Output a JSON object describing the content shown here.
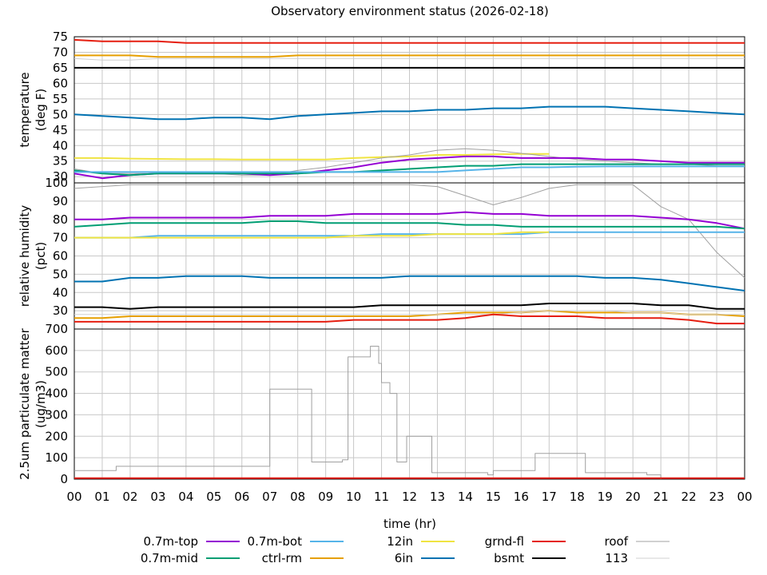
{
  "title": "Observatory environment status (2026-02-18)",
  "x_axis": {
    "label": "time (hr)",
    "ticks": [
      "00",
      "01",
      "02",
      "03",
      "04",
      "05",
      "06",
      "07",
      "08",
      "09",
      "10",
      "11",
      "12",
      "13",
      "14",
      "15",
      "16",
      "17",
      "18",
      "19",
      "20",
      "21",
      "22",
      "23",
      "00"
    ]
  },
  "legend": [
    {
      "name": "0.7m-top",
      "color": "#9400d3"
    },
    {
      "name": "0.7m-mid",
      "color": "#009e73"
    },
    {
      "name": "0.7m-bot",
      "color": "#56b4e9"
    },
    {
      "name": "ctrl-rm",
      "color": "#e69f00"
    },
    {
      "name": "12in",
      "color": "#f0e442"
    },
    {
      "name": "6in",
      "color": "#0072b2"
    },
    {
      "name": "grnd-fl",
      "color": "#e51e10"
    },
    {
      "name": "bsmt",
      "color": "#000000"
    },
    {
      "name": "roof",
      "color": "#a0a0a0"
    },
    {
      "name": "113",
      "color": "#d0d0d0"
    }
  ],
  "chart_data": [
    {
      "type": "line",
      "ylabel": "temperature\n(deg F)",
      "ylim": [
        28,
        75
      ],
      "yticks": [
        "30",
        "35",
        "40",
        "45",
        "50",
        "55",
        "60",
        "65",
        "70",
        "75"
      ],
      "x": [
        0,
        1,
        2,
        3,
        4,
        5,
        6,
        7,
        8,
        9,
        10,
        11,
        12,
        13,
        14,
        15,
        16,
        17,
        18,
        19,
        20,
        21,
        22,
        23,
        24
      ],
      "series": [
        {
          "name": "grnd-fl",
          "color": "#e51e10",
          "values": [
            74,
            73.5,
            73.5,
            73.5,
            73,
            73,
            73,
            73,
            73,
            73,
            73,
            73,
            73,
            73,
            73,
            73,
            73,
            73,
            73,
            73,
            73,
            73,
            73,
            73,
            73
          ]
        },
        {
          "name": "ctrl-rm",
          "color": "#e69f00",
          "values": [
            69,
            69,
            69,
            68.5,
            68.5,
            68.5,
            68.5,
            68.5,
            69,
            69,
            69,
            69,
            69,
            69,
            69,
            69,
            69,
            69,
            69,
            69,
            69,
            69,
            69,
            69,
            69
          ]
        },
        {
          "name": "113",
          "color": "#d0d0d0",
          "values": [
            68,
            67.5,
            67.5,
            68,
            68,
            68,
            68,
            68,
            68,
            68,
            68,
            68,
            68,
            68,
            68,
            68,
            68,
            68,
            68,
            68,
            68,
            68,
            68,
            68,
            68
          ]
        },
        {
          "name": "bsmt",
          "color": "#000000",
          "values": [
            65,
            65,
            65,
            65,
            65,
            65,
            65,
            65,
            65,
            65,
            65,
            65,
            65,
            65,
            65,
            65,
            65,
            65,
            65,
            65,
            65,
            65,
            65,
            65,
            65
          ]
        },
        {
          "name": "6in",
          "color": "#0072b2",
          "values": [
            50,
            49.5,
            49,
            48.5,
            48.5,
            49,
            49,
            48.5,
            49.5,
            50,
            50.5,
            51,
            51,
            51.5,
            51.5,
            52,
            52,
            52.5,
            52.5,
            52.5,
            52,
            51.5,
            51,
            50.5,
            50
          ]
        },
        {
          "name": "12in",
          "color": "#f0e442",
          "values": [
            36,
            36,
            35.8,
            35.7,
            35.6,
            35.6,
            35.5,
            35.5,
            35.5,
            35.5,
            36,
            36.3,
            36.5,
            37,
            37,
            37.2,
            37.3,
            37.3,
            null,
            null,
            null,
            null,
            null,
            null,
            null
          ]
        },
        {
          "name": "roof",
          "color": "#a0a0a0",
          "values": [
            32.5,
            31,
            31,
            31,
            31,
            31,
            30.5,
            30.5,
            32,
            33,
            34.5,
            36,
            37,
            38.5,
            39,
            38.5,
            37.5,
            36.5,
            35.5,
            35,
            34.5,
            34,
            34,
            33.5,
            33.5
          ]
        },
        {
          "name": "0.7m-top",
          "color": "#9400d3",
          "values": [
            31,
            29.5,
            30.5,
            31,
            31,
            31,
            31,
            30.5,
            31,
            32,
            33,
            34.5,
            35.5,
            36,
            36.5,
            36.5,
            36,
            36,
            36,
            35.5,
            35.5,
            35,
            34.5,
            34.5,
            34.5
          ]
        },
        {
          "name": "0.7m-mid",
          "color": "#009e73",
          "values": [
            32,
            31,
            30.5,
            31,
            31,
            31,
            31,
            31,
            31,
            31.5,
            31.5,
            32,
            32.5,
            33,
            33.5,
            33.5,
            34,
            34,
            34,
            34,
            34,
            34,
            34,
            34,
            34
          ]
        },
        {
          "name": "0.7m-bot",
          "color": "#56b4e9",
          "values": [
            31.5,
            31.5,
            31.5,
            31.5,
            31.5,
            31.5,
            31.5,
            31.5,
            31.5,
            31.5,
            31.5,
            31.5,
            31.5,
            31.5,
            32,
            32.5,
            33,
            33,
            33.2,
            33.3,
            33.3,
            33.3,
            33.3,
            33.3,
            33.3
          ]
        }
      ]
    },
    {
      "type": "line",
      "ylabel": "relative humidity\n(pct)",
      "ylim": [
        20,
        100
      ],
      "yticks": [
        "30",
        "40",
        "50",
        "60",
        "70",
        "80",
        "90",
        "100"
      ],
      "x": [
        0,
        1,
        2,
        3,
        4,
        5,
        6,
        7,
        8,
        9,
        10,
        11,
        12,
        13,
        14,
        15,
        16,
        17,
        18,
        19,
        20,
        21,
        22,
        23,
        24
      ],
      "series": [
        {
          "name": "roof",
          "color": "#a0a0a0",
          "values": [
            97,
            98,
            99,
            99,
            99,
            99,
            99,
            99,
            99,
            99,
            99,
            99,
            99,
            98,
            93,
            88,
            92,
            97,
            99,
            99,
            99,
            87,
            80,
            62,
            48
          ]
        },
        {
          "name": "0.7m-top",
          "color": "#9400d3",
          "values": [
            80,
            80,
            81,
            81,
            81,
            81,
            81,
            82,
            82,
            82,
            83,
            83,
            83,
            83,
            84,
            83,
            83,
            82,
            82,
            82,
            82,
            81,
            80,
            78,
            75
          ]
        },
        {
          "name": "0.7m-mid",
          "color": "#009e73",
          "values": [
            76,
            77,
            78,
            78,
            78,
            78,
            78,
            79,
            79,
            78,
            78,
            78,
            78,
            78,
            77,
            77,
            76,
            76,
            76,
            76,
            76,
            76,
            76,
            76,
            75
          ]
        },
        {
          "name": "0.7m-bot",
          "color": "#56b4e9",
          "values": [
            70,
            70,
            70,
            71,
            71,
            71,
            71,
            71,
            71,
            71,
            71,
            72,
            72,
            72,
            72,
            72,
            72,
            73,
            73,
            73,
            73,
            73,
            73,
            73,
            73
          ]
        },
        {
          "name": "12in",
          "color": "#f0e442",
          "values": [
            70,
            70,
            70,
            70,
            70,
            70,
            70,
            70,
            70,
            70,
            71,
            71,
            71,
            72,
            72,
            72,
            73,
            73,
            null,
            null,
            null,
            null,
            null,
            null,
            null
          ]
        },
        {
          "name": "6in",
          "color": "#0072b2",
          "values": [
            46,
            46,
            48,
            48,
            49,
            49,
            49,
            48,
            48,
            48,
            48,
            48,
            49,
            49,
            49,
            49,
            49,
            49,
            49,
            48,
            48,
            47,
            45,
            43,
            41
          ]
        },
        {
          "name": "bsmt",
          "color": "#000000",
          "values": [
            32,
            32,
            31,
            32,
            32,
            32,
            32,
            32,
            32,
            32,
            32,
            33,
            33,
            33,
            33,
            33,
            33,
            34,
            34,
            34,
            34,
            33,
            33,
            31,
            31
          ]
        },
        {
          "name": "ctrl-rm",
          "color": "#e69f00",
          "values": [
            26,
            26,
            27,
            27,
            27,
            27,
            27,
            27,
            27,
            27,
            27,
            27,
            27,
            28,
            29,
            29,
            29,
            30,
            29,
            29,
            29,
            29,
            28,
            28,
            27
          ]
        },
        {
          "name": "113",
          "color": "#d0d0d0",
          "values": [
            28,
            28,
            28,
            28,
            28,
            28,
            28,
            28,
            28,
            28,
            28,
            28,
            28,
            28,
            28,
            28,
            29,
            30,
            30,
            30,
            29,
            29,
            28,
            28,
            28
          ]
        },
        {
          "name": "grnd-fl",
          "color": "#e51e10",
          "values": [
            24,
            24,
            24,
            24,
            24,
            24,
            24,
            24,
            24,
            24,
            25,
            25,
            25,
            25,
            26,
            28,
            27,
            27,
            27,
            26,
            26,
            26,
            25,
            23,
            23
          ]
        }
      ]
    },
    {
      "type": "line",
      "ylabel": "2.5um particulate matter\n(ug/m3)",
      "ylim": [
        0,
        700
      ],
      "yticks": [
        "0",
        "100",
        "200",
        "300",
        "400",
        "500",
        "600",
        "700"
      ],
      "series": [
        {
          "name": "roof",
          "color": "#a0a0a0",
          "x": [
            0,
            1.5,
            1.5,
            7,
            7,
            8.5,
            8.5,
            9.6,
            9.6,
            9.8,
            9.8,
            10.6,
            10.6,
            10.9,
            10.9,
            11,
            11,
            11.3,
            11.3,
            11.55,
            11.55,
            11.9,
            11.9,
            12.3,
            12.3,
            12.8,
            12.8,
            14.8,
            14.8,
            15.0,
            15.0,
            16.5,
            16.5,
            17.3,
            17.3,
            18.3,
            18.3,
            20.5,
            20.5,
            21,
            21
          ],
          "values": [
            40,
            40,
            60,
            60,
            420,
            420,
            80,
            80,
            90,
            90,
            570,
            570,
            620,
            620,
            540,
            540,
            450,
            450,
            400,
            400,
            80,
            80,
            200,
            200,
            200,
            200,
            30,
            30,
            20,
            20,
            40,
            40,
            120,
            120,
            120,
            120,
            30,
            30,
            20,
            20,
            0
          ]
        },
        {
          "name": "grnd-fl",
          "color": "#e51e10",
          "x": [
            0,
            24
          ],
          "values": [
            5,
            5
          ]
        }
      ]
    }
  ]
}
